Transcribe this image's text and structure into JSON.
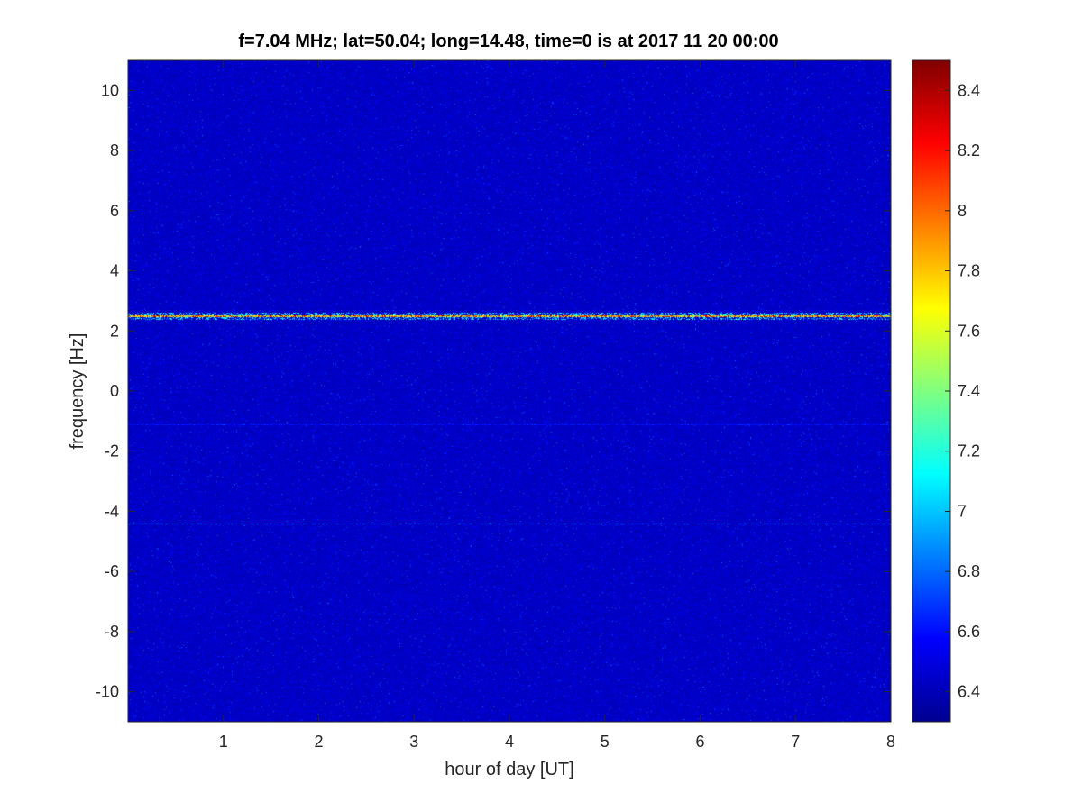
{
  "chart_data": {
    "type": "heatmap",
    "title": "f=7.04 MHz;  lat=50.04; long=14.48, time=0 is at 2017 11 20 00:00",
    "xlabel": "hour of day [UT]",
    "ylabel": "frequency [Hz]",
    "xlim": [
      0,
      8
    ],
    "ylim": [
      -11,
      11
    ],
    "xticks": [
      1,
      2,
      3,
      4,
      5,
      6,
      7,
      8
    ],
    "xtick_labels": [
      "1",
      "2",
      "3",
      "4",
      "5",
      "6",
      "7",
      "8"
    ],
    "yticks": [
      10,
      8,
      6,
      4,
      2,
      0,
      -2,
      -4,
      -6,
      -8,
      -10
    ],
    "ytick_labels": [
      "10",
      "8",
      "6",
      "4",
      "2",
      "0",
      "-2",
      "-4",
      "-6",
      "-8",
      "-10"
    ],
    "colorbar": {
      "range": [
        6.3,
        8.5
      ],
      "ticks": [
        8.4,
        8.2,
        8,
        7.8,
        7.6,
        7.4,
        7.2,
        7,
        6.8,
        6.6,
        6.4
      ],
      "tick_labels": [
        "8.4",
        "8.2",
        "8",
        "7.8",
        "7.6",
        "7.4",
        "7.2",
        "7",
        "6.8",
        "6.6",
        "6.4"
      ],
      "colormap": "jet"
    },
    "background_level": 6.45,
    "features": [
      {
        "kind": "horizontal_line",
        "frequency_hz": 2.5,
        "level_range": [
          7.2,
          8.5
        ],
        "hours": [
          0,
          8
        ]
      },
      {
        "kind": "faint_line",
        "frequency_hz": -4.4,
        "level_range": [
          6.6,
          6.9
        ],
        "hours": [
          0,
          8
        ]
      },
      {
        "kind": "faint_line",
        "frequency_hz": -1.1,
        "level_range": [
          6.5,
          6.7
        ],
        "hours": [
          0,
          8
        ]
      }
    ],
    "grid": false,
    "legend": "none"
  }
}
